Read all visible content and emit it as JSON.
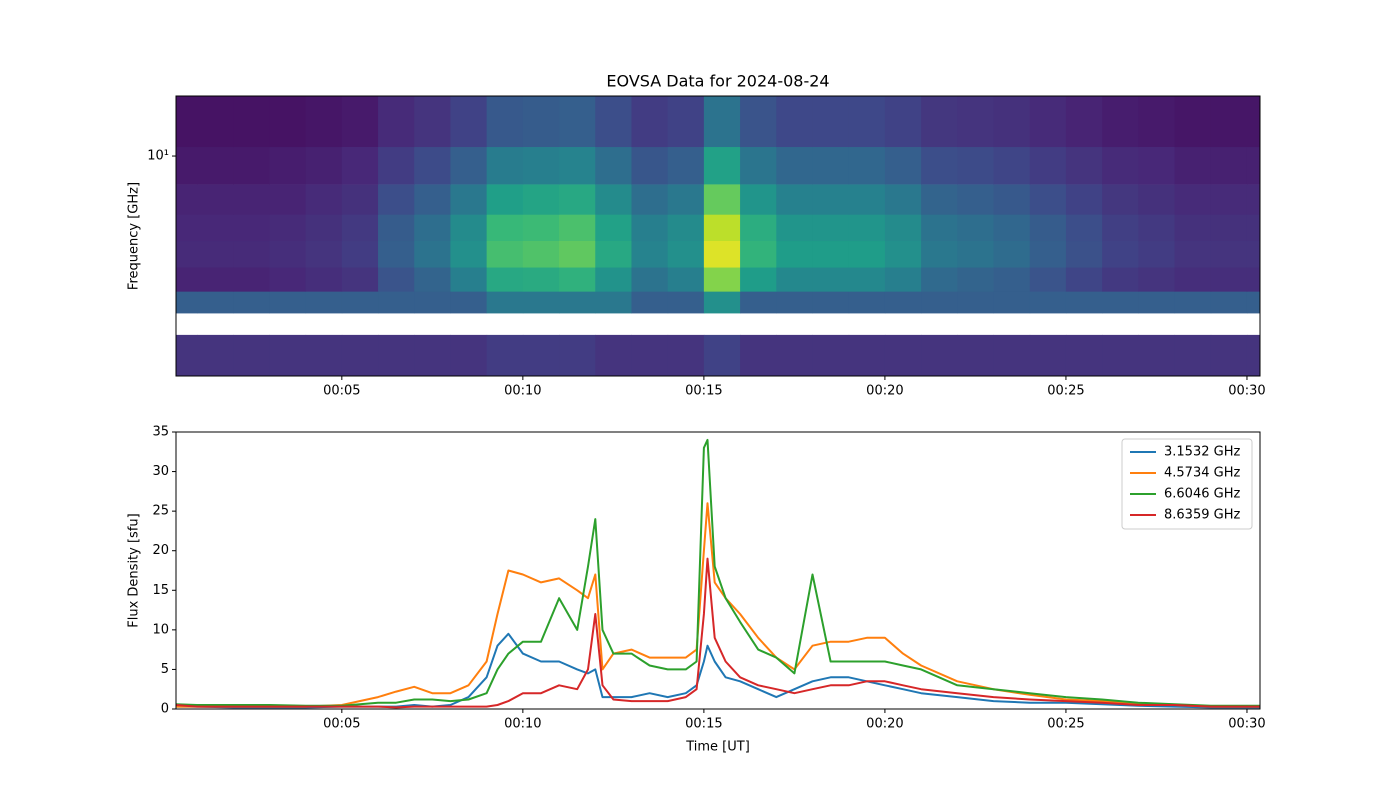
{
  "chart_data": [
    {
      "type": "heatmap",
      "title": "EOVSA Data for 2024-08-24",
      "ylabel": "Frequency [GHz]",
      "yscale": "log",
      "colormap": "viridis",
      "zlim": [
        0,
        1
      ],
      "x": [
        0.42,
        1,
        2,
        3,
        4,
        5,
        6,
        7,
        8,
        9,
        10,
        11,
        12,
        13,
        14,
        15,
        16,
        17,
        18,
        19,
        20,
        21,
        22,
        23,
        24,
        25,
        26,
        27,
        28,
        29,
        30,
        30.36
      ],
      "y": [
        1.05,
        1.6,
        2.0,
        2.5,
        3.2,
        4.2,
        5.5,
        7.5,
        11,
        18.5
      ],
      "z": [
        [
          0.15,
          0.15,
          0.15,
          0.15,
          0.15,
          0.15,
          0.15,
          0.15,
          0.15,
          0.18,
          0.18,
          0.18,
          0.15,
          0.15,
          0.15,
          0.2,
          0.15,
          0.15,
          0.15,
          0.15,
          0.15,
          0.15,
          0.15,
          0.15,
          0.15,
          0.15,
          0.15,
          0.15,
          0.15,
          0.15,
          0.15
        ],
        [
          null,
          null,
          null,
          null,
          null,
          null,
          null,
          null,
          null,
          null,
          null,
          null,
          null,
          null,
          null,
          null,
          null,
          null,
          null,
          null,
          null,
          null,
          null,
          null,
          null,
          null,
          null,
          null,
          null,
          null,
          null
        ],
        [
          0.3,
          0.3,
          0.3,
          0.3,
          0.3,
          0.3,
          0.3,
          0.3,
          0.3,
          0.4,
          0.4,
          0.4,
          0.4,
          0.3,
          0.3,
          0.5,
          0.3,
          0.3,
          0.3,
          0.3,
          0.3,
          0.3,
          0.3,
          0.3,
          0.3,
          0.3,
          0.3,
          0.3,
          0.3,
          0.3,
          0.3
        ],
        [
          0.1,
          0.1,
          0.1,
          0.11,
          0.13,
          0.15,
          0.26,
          0.32,
          0.43,
          0.6,
          0.61,
          0.64,
          0.51,
          0.38,
          0.43,
          0.81,
          0.55,
          0.47,
          0.47,
          0.47,
          0.43,
          0.34,
          0.32,
          0.3,
          0.26,
          0.21,
          0.17,
          0.15,
          0.13,
          0.13,
          0.13
        ],
        [
          0.12,
          0.12,
          0.12,
          0.13,
          0.15,
          0.18,
          0.3,
          0.38,
          0.5,
          0.7,
          0.72,
          0.75,
          0.6,
          0.45,
          0.5,
          0.95,
          0.65,
          0.55,
          0.55,
          0.55,
          0.5,
          0.4,
          0.38,
          0.35,
          0.3,
          0.25,
          0.2,
          0.18,
          0.15,
          0.15,
          0.15
        ],
        [
          0.11,
          0.11,
          0.11,
          0.12,
          0.14,
          0.17,
          0.29,
          0.36,
          0.48,
          0.67,
          0.68,
          0.71,
          0.57,
          0.43,
          0.48,
          0.9,
          0.62,
          0.52,
          0.52,
          0.52,
          0.48,
          0.38,
          0.36,
          0.33,
          0.29,
          0.24,
          0.19,
          0.17,
          0.14,
          0.14,
          0.14
        ],
        [
          0.1,
          0.1,
          0.1,
          0.1,
          0.12,
          0.14,
          0.24,
          0.3,
          0.4,
          0.56,
          0.58,
          0.6,
          0.48,
          0.36,
          0.4,
          0.76,
          0.52,
          0.44,
          0.44,
          0.44,
          0.4,
          0.32,
          0.3,
          0.28,
          0.24,
          0.2,
          0.16,
          0.14,
          0.12,
          0.12,
          0.12
        ],
        [
          0.07,
          0.07,
          0.07,
          0.08,
          0.09,
          0.11,
          0.18,
          0.23,
          0.3,
          0.42,
          0.43,
          0.45,
          0.36,
          0.27,
          0.3,
          0.57,
          0.39,
          0.33,
          0.33,
          0.33,
          0.3,
          0.24,
          0.23,
          0.21,
          0.18,
          0.15,
          0.12,
          0.11,
          0.09,
          0.09,
          0.09
        ],
        [
          0.05,
          0.05,
          0.05,
          0.05,
          0.06,
          0.07,
          0.12,
          0.15,
          0.2,
          0.28,
          0.29,
          0.3,
          0.24,
          0.18,
          0.2,
          0.38,
          0.26,
          0.22,
          0.22,
          0.22,
          0.2,
          0.16,
          0.15,
          0.14,
          0.12,
          0.1,
          0.08,
          0.07,
          0.06,
          0.06,
          0.06
        ]
      ],
      "xlim": [
        0.42,
        30.36
      ],
      "ylim": [
        1.05,
        18.5
      ],
      "xticks": [
        {
          "value": 5,
          "label": "00:05"
        },
        {
          "value": 10,
          "label": "00:10"
        },
        {
          "value": 15,
          "label": "00:15"
        },
        {
          "value": 20,
          "label": "00:20"
        },
        {
          "value": 25,
          "label": "00:25"
        },
        {
          "value": 30,
          "label": "00:30"
        }
      ],
      "yticks": [
        {
          "value": 10,
          "label": "10¹"
        }
      ]
    },
    {
      "type": "line",
      "xlabel": "Time [UT]",
      "ylabel": "Flux Density [sfu]",
      "legend": "upper right",
      "x": [
        0.42,
        1,
        2,
        3,
        4,
        5,
        6,
        6.5,
        7,
        7.5,
        8,
        8.5,
        9,
        9.3,
        9.6,
        10,
        10.5,
        11,
        11.5,
        11.8,
        12,
        12.2,
        12.5,
        13,
        13.5,
        14,
        14.5,
        14.8,
        15,
        15.1,
        15.3,
        15.6,
        16,
        16.5,
        17,
        17.5,
        18,
        18.5,
        19,
        19.5,
        20,
        20.5,
        21,
        22,
        23,
        24,
        25,
        26,
        27,
        28,
        29,
        30,
        30.36
      ],
      "series": [
        {
          "name": "3.1532 GHz",
          "color": "#1f77b4",
          "values": [
            0.3,
            0.3,
            0.2,
            0.2,
            0.2,
            0.3,
            0.3,
            0.3,
            0.5,
            0.3,
            0.5,
            1.5,
            4,
            8,
            9.5,
            7,
            6,
            6,
            5,
            4.5,
            5,
            1.5,
            1.5,
            1.5,
            2,
            1.5,
            2,
            3,
            6,
            8,
            6,
            4,
            3.5,
            2.5,
            1.5,
            2.5,
            3.5,
            4,
            4,
            3.5,
            3,
            2.5,
            2,
            1.5,
            1,
            0.8,
            0.8,
            0.6,
            0.4,
            0.3,
            0.2,
            0.2,
            0.2
          ]
        },
        {
          "name": "4.5734 GHz",
          "color": "#ff7f0e",
          "values": [
            0.3,
            0.3,
            0.3,
            0.3,
            0.3,
            0.5,
            1.5,
            2.2,
            2.8,
            2,
            2,
            3,
            6,
            12,
            17.5,
            17,
            16,
            16.5,
            15,
            14,
            17,
            5,
            7,
            7.5,
            6.5,
            6.5,
            6.5,
            7.5,
            20,
            26,
            16,
            14,
            12,
            9,
            6.5,
            5,
            8,
            8.5,
            8.5,
            9,
            9,
            7,
            5.5,
            3.5,
            2.5,
            1.8,
            1.2,
            1,
            0.7,
            0.5,
            0.3,
            0.3,
            0.3
          ]
        },
        {
          "name": "6.6046 GHz",
          "color": "#2ca02c",
          "values": [
            0.6,
            0.5,
            0.5,
            0.5,
            0.4,
            0.4,
            0.8,
            0.8,
            1.2,
            1.2,
            1,
            1.2,
            2,
            5,
            7,
            8.5,
            8.5,
            14,
            10,
            18,
            24,
            10,
            7,
            7,
            5.5,
            5,
            5,
            6,
            33,
            34,
            18,
            14,
            11,
            7.5,
            6.5,
            4.5,
            17,
            6,
            6,
            6,
            6,
            5.5,
            5,
            3,
            2.5,
            2,
            1.5,
            1.2,
            0.8,
            0.6,
            0.4,
            0.4,
            0.4
          ]
        },
        {
          "name": "8.6359 GHz",
          "color": "#d62728",
          "values": [
            0.5,
            0.3,
            0.3,
            0.3,
            0.3,
            0.3,
            0.3,
            0.2,
            0.3,
            0.3,
            0.3,
            0.3,
            0.3,
            0.5,
            1,
            2,
            2,
            3,
            2.5,
            5,
            12,
            3,
            1.2,
            1,
            1,
            1,
            1.5,
            2.5,
            12,
            19,
            9,
            6,
            4,
            3,
            2.5,
            2,
            2.5,
            3,
            3,
            3.5,
            3.5,
            3,
            2.5,
            2,
            1.5,
            1.2,
            1,
            0.8,
            0.5,
            0.5,
            0.3,
            0.3,
            0.3
          ]
        }
      ],
      "xlim": [
        0.42,
        30.36
      ],
      "ylim": [
        0,
        35
      ],
      "xticks": [
        {
          "value": 5,
          "label": "00:05"
        },
        {
          "value": 10,
          "label": "00:10"
        },
        {
          "value": 15,
          "label": "00:15"
        },
        {
          "value": 20,
          "label": "00:20"
        },
        {
          "value": 25,
          "label": "00:25"
        },
        {
          "value": 30,
          "label": "00:30"
        }
      ],
      "yticks": [
        0,
        5,
        10,
        15,
        20,
        25,
        30,
        35
      ]
    }
  ]
}
